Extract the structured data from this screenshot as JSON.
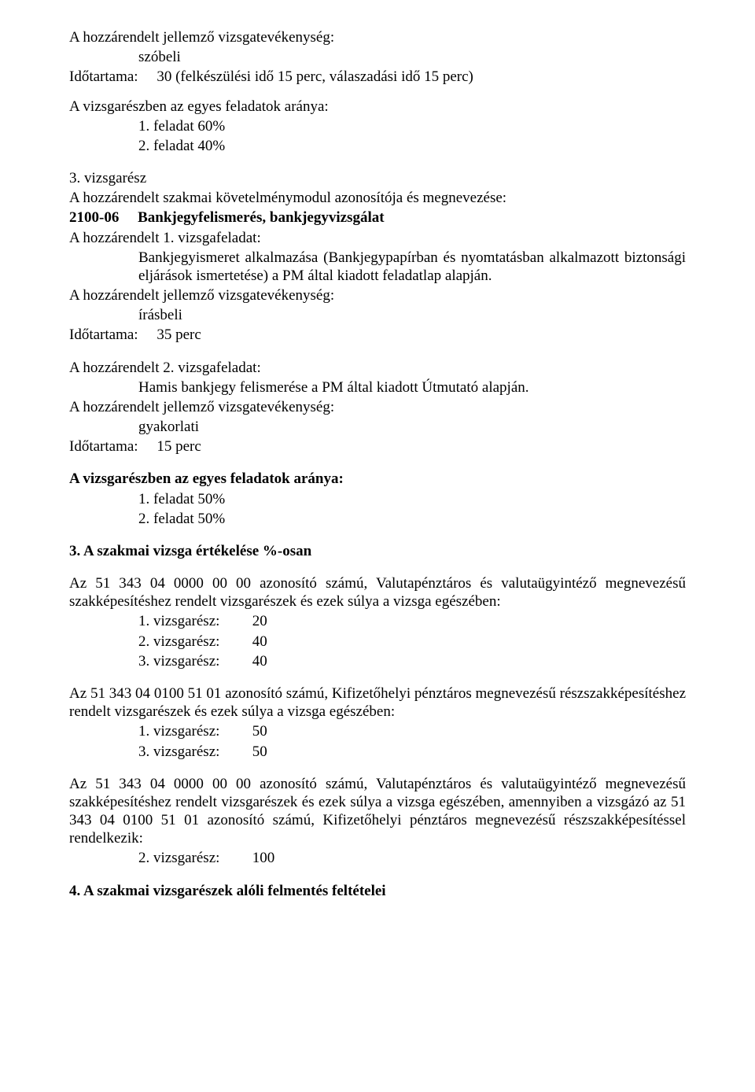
{
  "p1_line1": "A hozzárendelt jellemző vizsgatevékenység:",
  "p1_line2": "szóbeli",
  "p1_line3_label": "Időtartama:",
  "p1_line3_val": "30 (felkészülési idő 15 perc, válaszadási idő 15 perc)",
  "p2_line1": "A vizsgarészben az egyes feladatok aránya:",
  "p2_f1": "1. feladat  60%",
  "p2_f2": "2. feladat  40%",
  "p3_line1": "3. vizsgarész",
  "p3_line2": "A hozzárendelt szakmai követelménymodul azonosítója és megnevezése:",
  "p3_line3_code": "2100-06",
  "p3_line3_title": "Bankjegyfelismerés, bankjegyvizsgálat",
  "p3_line4": "A hozzárendelt 1. vizsgafeladat:",
  "p3_line5": "Bankjegyismeret alkalmazása (Bankjegypapírban és nyomtatásban alkalmazott biztonsági eljárások ismertetése) a PM által kiadott feladatlap alapján.",
  "p3_line6": "A hozzárendelt jellemző vizsgatevékenység:",
  "p3_line7": "írásbeli",
  "p3_line8_label": "Időtartama:",
  "p3_line8_val": "35 perc",
  "p4_line1": "A hozzárendelt 2. vizsgafeladat:",
  "p4_line2": "Hamis bankjegy felismerése a PM által kiadott Útmutató alapján.",
  "p4_line3": "A hozzárendelt jellemző vizsgatevékenység:",
  "p4_line4": "gyakorlati",
  "p4_line5_label": "Időtartama:",
  "p4_line5_val": "15 perc",
  "p5_line1": "A vizsgarészben az egyes feladatok aránya:",
  "p5_f1": "1. feladat  50%",
  "p5_f2": "2. feladat  50%",
  "p6_heading": "3.  A szakmai vizsga értékelése %-osan",
  "p7_text": "Az 51 343 04 0000 00 00 azonosító számú, Valutapénztáros és valutaügyintéző megnevezésű szakképesítéshez rendelt vizsgarészek és ezek súlya a vizsga egészében:",
  "p7_v1_label": "1. vizsgarész:",
  "p7_v1_val": "20",
  "p7_v2_label": "2. vizsgarész:",
  "p7_v2_val": "40",
  "p7_v3_label": "3. vizsgarész:",
  "p7_v3_val": "40",
  "p8_text": "Az 51 343 04 0100 51 01 azonosító számú, Kifizetőhelyi pénztáros megnevezésű részszakképesítéshez rendelt vizsgarészek és ezek súlya a vizsga egészében:",
  "p8_v1_label": "1. vizsgarész:",
  "p8_v1_val": "50",
  "p8_v2_label": "3. vizsgarész:",
  "p8_v2_val": "50",
  "p9_text": "Az 51 343 04 0000 00 00 azonosító számú, Valutapénztáros és valutaügyintéző megnevezésű szakképesítéshez rendelt vizsgarészek és ezek súlya a vizsga egészében, amennyiben a vizsgázó az 51 343 04 0100 51 01 azonosító számú, Kifizetőhelyi pénztáros megnevezésű részszakképesítéssel rendelkezik:",
  "p9_v1_label": "2. vizsgarész:",
  "p9_v1_val": "100",
  "p10_heading": "4.  A szakmai vizsgarészek alóli felmentés feltételei"
}
